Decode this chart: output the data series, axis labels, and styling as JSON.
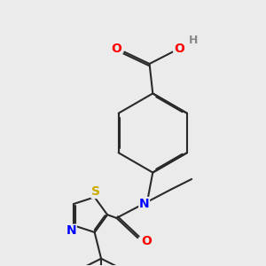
{
  "bg_color": "#ebebeb",
  "bond_color": "#2a2a2a",
  "bond_width": 1.5,
  "atom_colors": {
    "O": "#ff0000",
    "N": "#0000ff",
    "S": "#ccaa00",
    "H": "#888888",
    "C": "#2a2a2a"
  },
  "font_size": 9,
  "fig_size": [
    3.0,
    3.0
  ],
  "dpi": 100
}
